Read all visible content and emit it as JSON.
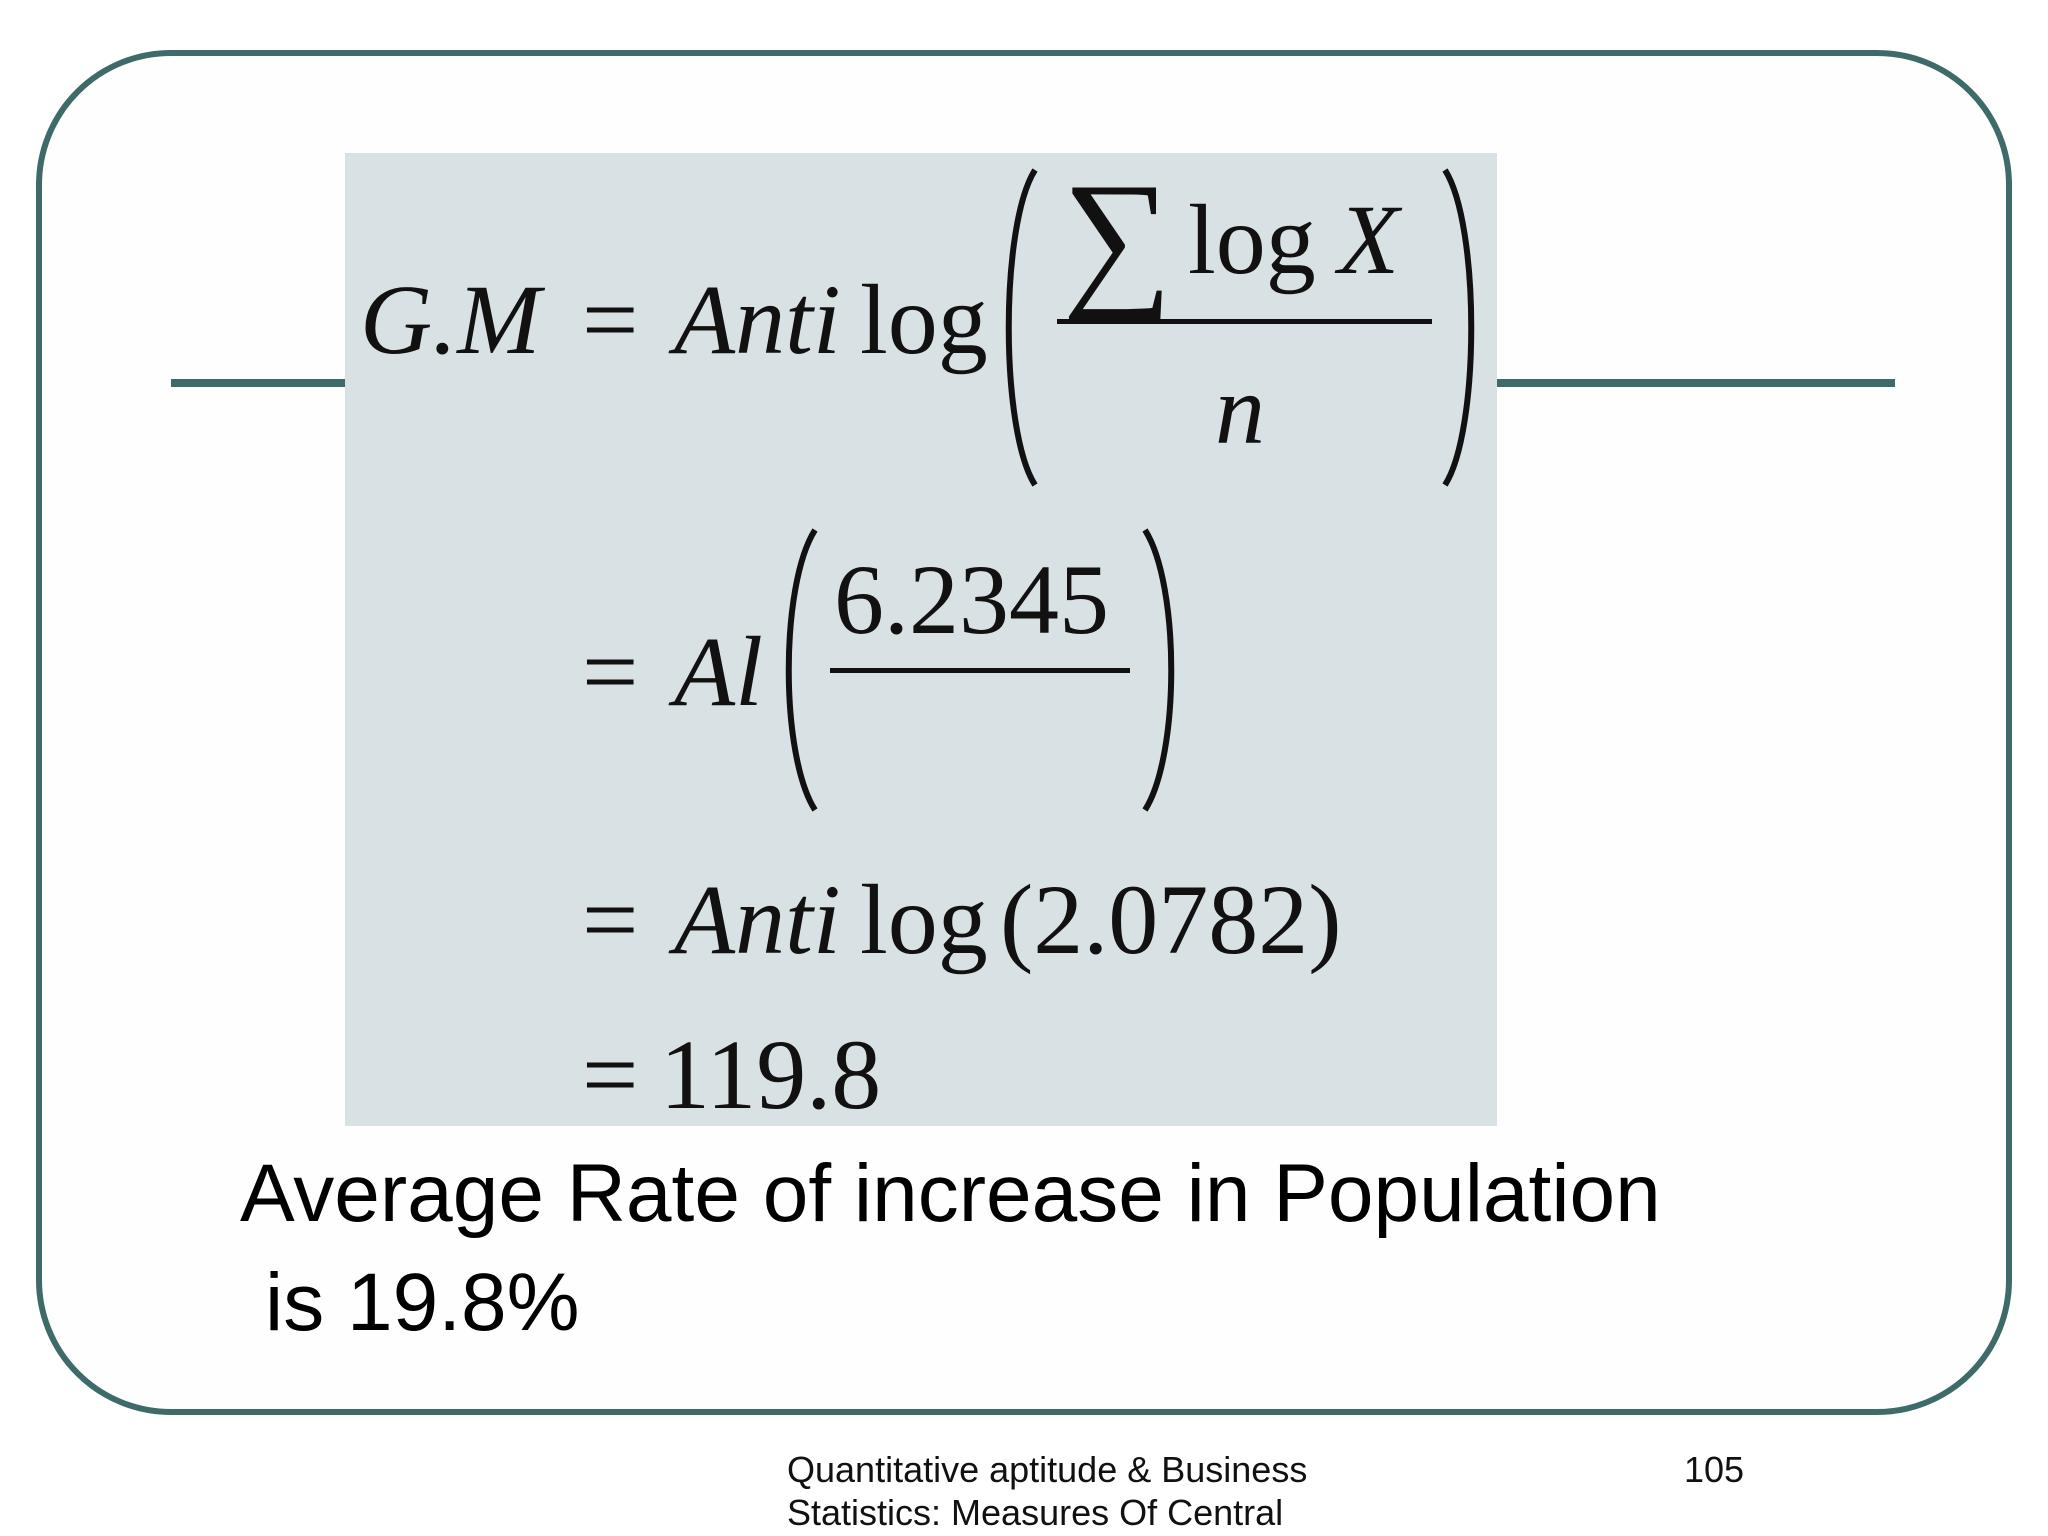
{
  "formula": {
    "lhs": "G.M",
    "equals": "=",
    "anti": "Anti",
    "log": "log",
    "sigma": "∑",
    "log_x": "log",
    "x_var": "X",
    "n_var": "n",
    "line2_func": "Al",
    "line2_numerator": "6.2345",
    "line3_value": "(2.0782)",
    "line4_value": "119.8"
  },
  "summary": {
    "line1": "Average Rate of increase in Population",
    "line2": "is 19.8%"
  },
  "footer": {
    "title_line1": "Quantitative aptitude & Business",
    "title_line2": "Statistics: Measures Of Central",
    "page_number": "105"
  },
  "colors": {
    "frame_border": "#3e6b6a",
    "formula_background": "#d8e1e3"
  }
}
